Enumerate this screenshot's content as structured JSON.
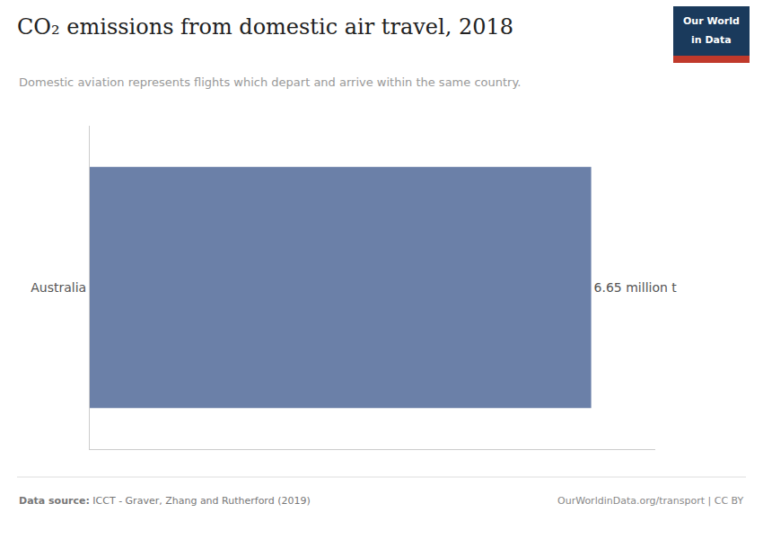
{
  "chart_data": {
    "type": "bar",
    "orientation": "horizontal",
    "title": "CO₂ emissions from domestic air travel, 2018",
    "subtitle": "Domestic aviation represents flights which depart and arrive within the same country.",
    "categories": [
      "Australia"
    ],
    "values": [
      6.65
    ],
    "value_labels": [
      "6.65 million t"
    ],
    "data_labels": true,
    "color": "#6b80a8",
    "xlim": [
      0,
      7.5
    ],
    "xticks": [],
    "tick_labels": "y",
    "grid": false,
    "annotations": [
      "Data source:",
      " ICCT - Graver, Zhang and Rutherford (2019)",
      "OurWorldinData.org/transport | CC BY",
      "Our World",
      "in Data"
    ]
  }
}
